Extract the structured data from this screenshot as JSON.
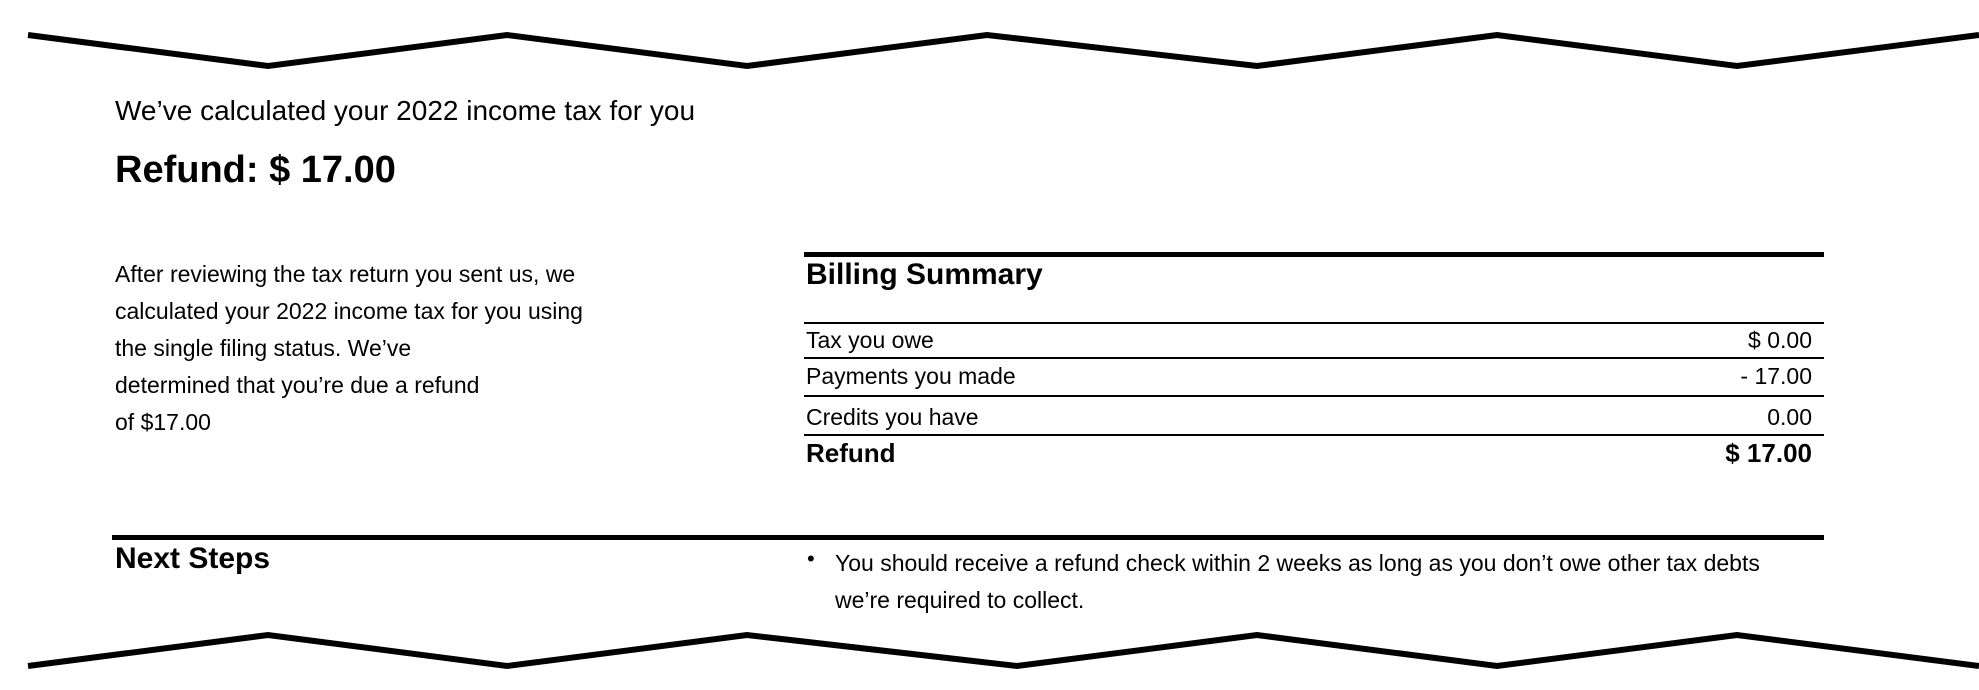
{
  "header": {
    "intro": "We’ve calculated your 2022 income tax for you",
    "refund_label": "Refund:  $ 17.00"
  },
  "explanation": {
    "lines": [
      "After reviewing the tax return you sent us, we",
      "calculated your 2022 income tax for you using",
      "the single filing status. We’ve",
      "determined that you’re due a refund",
      "of $17.00"
    ]
  },
  "billing_summary": {
    "title": "Billing Summary",
    "rows": [
      {
        "label": "Tax you owe",
        "value": "$ 0.00"
      },
      {
        "label": "Payments you made",
        "value": "- 17.00"
      },
      {
        "label": "Credits you have",
        "value": "0.00"
      },
      {
        "label": "Refund",
        "value": "$ 17.00"
      }
    ]
  },
  "next_steps": {
    "title": "Next Steps",
    "bullet_icon": "bullet-dot",
    "items": [
      "You should receive a refund check within 2 weeks as long as you don’t owe other tax debts we’re required to collect."
    ]
  }
}
